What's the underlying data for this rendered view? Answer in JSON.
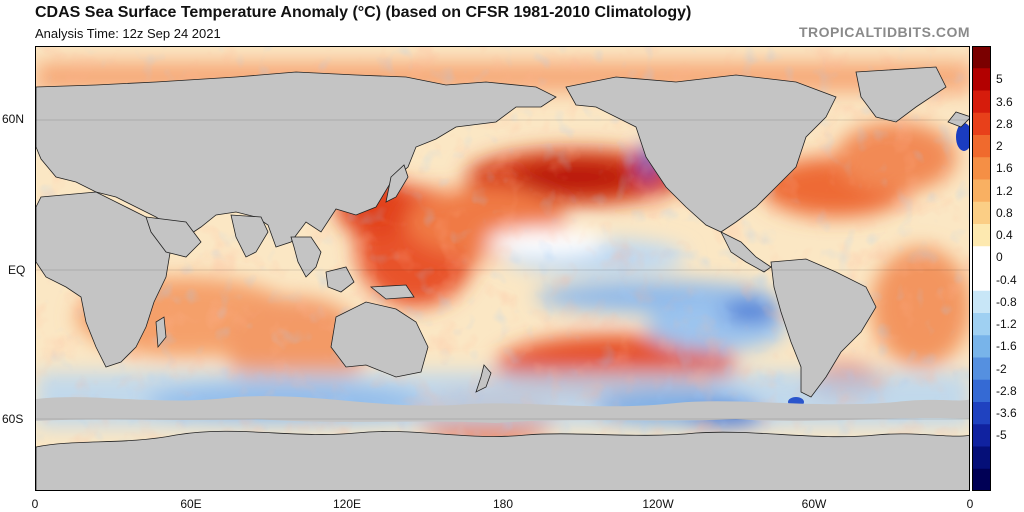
{
  "header": {
    "title": "CDAS Sea Surface Temperature Anomaly (°C) (based on CFSR 1981-2010 Climatology)",
    "analysis_time": "Analysis Time: 12z Sep 24 2021",
    "credit": "TROPICALTIDBITS.COM"
  },
  "map": {
    "lat_labels": [
      "60N",
      "EQ",
      "60S"
    ],
    "lon_labels": [
      "0",
      "60E",
      "120E",
      "180",
      "120W",
      "60W",
      "0"
    ],
    "colors": {
      "land": "#c4c4c4",
      "coast": "#222222",
      "ocean_neutral": "#fdfcef"
    }
  },
  "colorbar": {
    "labels": [
      "5",
      "3.6",
      "2.8",
      "2",
      "1.6",
      "1.2",
      "0.8",
      "0.4",
      "0",
      "-0.4",
      "-0.8",
      "-1.2",
      "-1.6",
      "-2",
      "-2.8",
      "-3.6",
      "-5"
    ],
    "colors": [
      "#7a0000",
      "#b20000",
      "#d61c0c",
      "#e8401a",
      "#f06a2d",
      "#f58f45",
      "#f9b062",
      "#fbce85",
      "#fde9b0",
      "#ffffff",
      "#ffffff",
      "#c8e6f7",
      "#9fd0f2",
      "#78b4ea",
      "#5590e0",
      "#356ad4",
      "#1f42c0",
      "#1022a0",
      "#050f78",
      "#000055"
    ]
  }
}
